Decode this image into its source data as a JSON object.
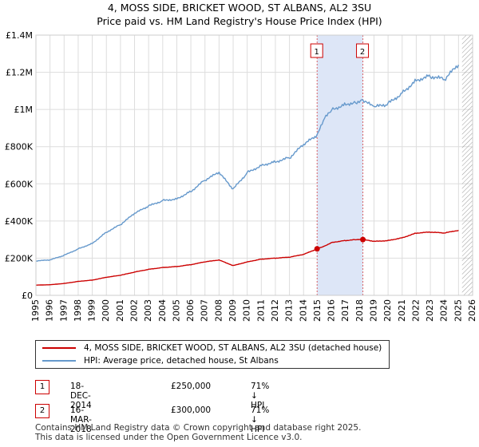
{
  "header": {
    "title": "4, MOSS SIDE, BRICKET WOOD, ST ALBANS, AL2 3SU",
    "subtitle": "Price paid vs. HM Land Registry's House Price Index (HPI)"
  },
  "colors": {
    "property": "#cc0000",
    "hpi": "#6699cc",
    "shade": "#dde6f7",
    "grid": "#dddddd",
    "hatch": "#999999"
  },
  "chart_data": {
    "type": "line",
    "x_ticks": [
      "1995",
      "1996",
      "1997",
      "1998",
      "1999",
      "2000",
      "2001",
      "2002",
      "2003",
      "2004",
      "2005",
      "2006",
      "2007",
      "2008",
      "2009",
      "2010",
      "2011",
      "2012",
      "2013",
      "2014",
      "2015",
      "2016",
      "2017",
      "2018",
      "2019",
      "2020",
      "2021",
      "2022",
      "2023",
      "2024",
      "2025",
      "2026"
    ],
    "y_ticks": [
      {
        "value": 0,
        "label": "£0"
      },
      {
        "value": 200000,
        "label": "£200K"
      },
      {
        "value": 400000,
        "label": "£400K"
      },
      {
        "value": 600000,
        "label": "£600K"
      },
      {
        "value": 800000,
        "label": "£800K"
      },
      {
        "value": 1000000,
        "label": "£1M"
      },
      {
        "value": 1200000,
        "label": "£1.2M"
      },
      {
        "value": 1400000,
        "label": "£1.4M"
      }
    ],
    "xlim": [
      1995,
      2026
    ],
    "ylim": [
      0,
      1400000
    ],
    "data_end": 2025.25,
    "shaded_range": [
      2014.96,
      2018.21
    ],
    "series": [
      {
        "name": "4, MOSS SIDE, BRICKET WOOD, ST ALBANS, AL2 3SU (detached house)",
        "key": "property",
        "points": [
          [
            1995,
            55000
          ],
          [
            1996,
            57000
          ],
          [
            1997,
            64000
          ],
          [
            1998,
            75000
          ],
          [
            1999,
            82000
          ],
          [
            2000,
            97000
          ],
          [
            2001,
            108000
          ],
          [
            2002,
            125000
          ],
          [
            2003,
            140000
          ],
          [
            2004,
            150000
          ],
          [
            2005,
            155000
          ],
          [
            2006,
            165000
          ],
          [
            2007,
            180000
          ],
          [
            2008,
            190000
          ],
          [
            2009,
            160000
          ],
          [
            2010,
            180000
          ],
          [
            2011,
            195000
          ],
          [
            2012,
            200000
          ],
          [
            2013,
            205000
          ],
          [
            2014,
            220000
          ],
          [
            2014.96,
            250000
          ],
          [
            2015.5,
            265000
          ],
          [
            2016,
            285000
          ],
          [
            2017,
            295000
          ],
          [
            2017.7,
            300000
          ],
          [
            2018.21,
            300000
          ],
          [
            2019,
            290000
          ],
          [
            2020,
            295000
          ],
          [
            2021,
            310000
          ],
          [
            2022,
            335000
          ],
          [
            2023,
            340000
          ],
          [
            2024,
            335000
          ],
          [
            2025,
            350000
          ]
        ]
      },
      {
        "name": "HPI: Average price, detached house, St Albans",
        "key": "hpi",
        "points": [
          [
            1995,
            185000
          ],
          [
            1996,
            190000
          ],
          [
            1997,
            215000
          ],
          [
            1998,
            250000
          ],
          [
            1999,
            280000
          ],
          [
            2000,
            340000
          ],
          [
            2001,
            380000
          ],
          [
            2002,
            440000
          ],
          [
            2003,
            480000
          ],
          [
            2004,
            510000
          ],
          [
            2005,
            520000
          ],
          [
            2006,
            560000
          ],
          [
            2007,
            620000
          ],
          [
            2008,
            660000
          ],
          [
            2009,
            570000
          ],
          [
            2010,
            660000
          ],
          [
            2011,
            700000
          ],
          [
            2012,
            720000
          ],
          [
            2013,
            740000
          ],
          [
            2014,
            810000
          ],
          [
            2014.96,
            860000
          ],
          [
            2015.5,
            950000
          ],
          [
            2016,
            1000000
          ],
          [
            2017,
            1030000
          ],
          [
            2017.7,
            1040000
          ],
          [
            2018.21,
            1050000
          ],
          [
            2019,
            1010000
          ],
          [
            2020,
            1030000
          ],
          [
            2021,
            1090000
          ],
          [
            2022,
            1160000
          ],
          [
            2023,
            1180000
          ],
          [
            2024,
            1160000
          ],
          [
            2025,
            1240000
          ]
        ]
      }
    ],
    "markers": [
      {
        "label": "1",
        "x": 2014.96,
        "y": 250000
      },
      {
        "label": "2",
        "x": 2018.21,
        "y": 300000
      }
    ]
  },
  "legend": {
    "property_label": "4, MOSS SIDE, BRICKET WOOD, ST ALBANS, AL2 3SU (detached house)",
    "hpi_label": "HPI: Average price, detached house, St Albans"
  },
  "transactions": [
    {
      "num": "1",
      "date": "18-DEC-2014",
      "price": "£250,000",
      "hpi": "71% ↓ HPI"
    },
    {
      "num": "2",
      "date": "16-MAR-2018",
      "price": "£300,000",
      "hpi": "71% ↓ HPI"
    }
  ],
  "footer": {
    "line1": "Contains HM Land Registry data © Crown copyright and database right 2025.",
    "line2": "This data is licensed under the Open Government Licence v3.0."
  }
}
